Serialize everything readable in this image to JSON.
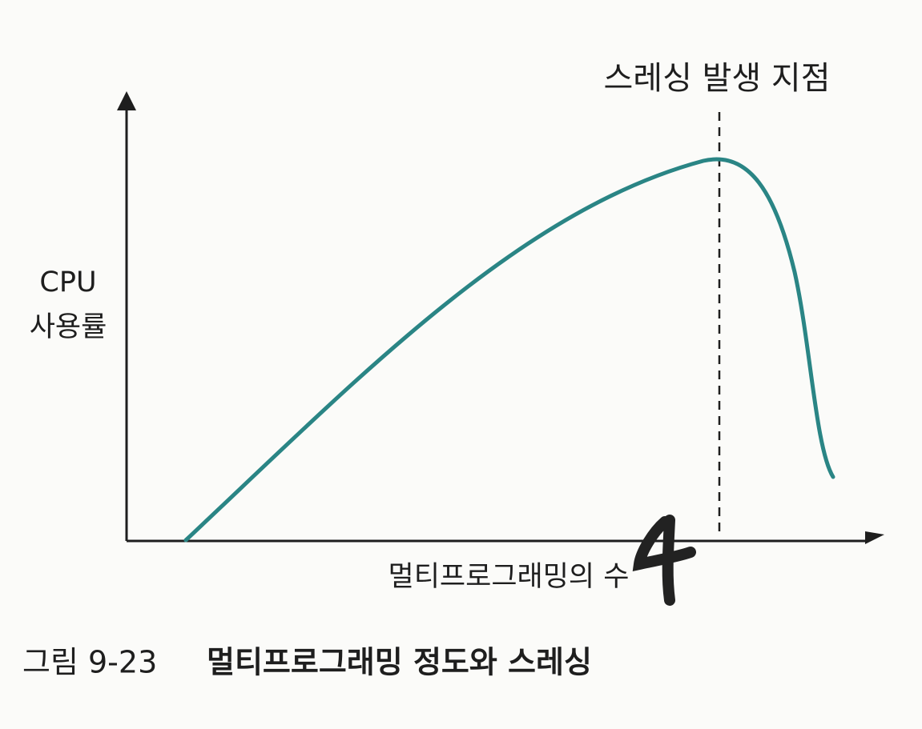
{
  "annotation": "스레싱 발생 지점",
  "y_axis_label": [
    "CPU",
    "사용률"
  ],
  "x_axis_label": "멀티프로그래밍의 수",
  "caption": {
    "number": "그림 9-23",
    "title": "멀티프로그래밍 정도와 스레싱"
  }
}
